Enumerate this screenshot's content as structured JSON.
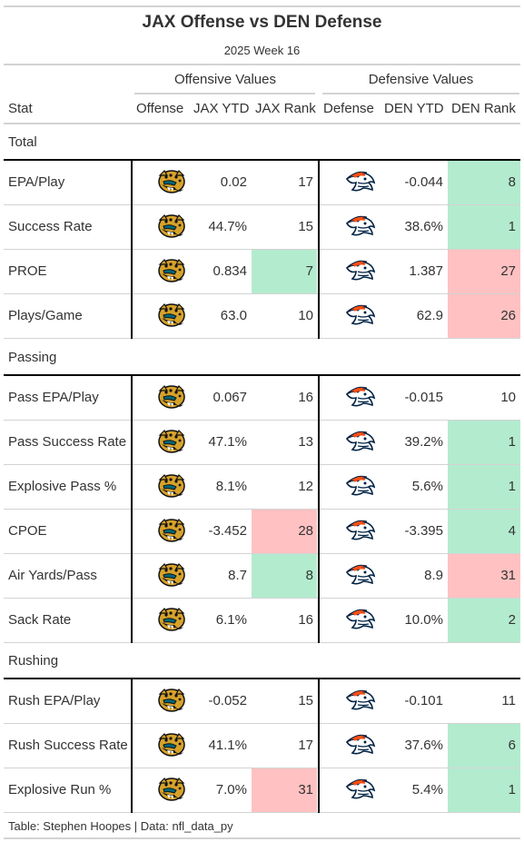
{
  "chart_data": {
    "type": "table",
    "title": "JAX Offense vs DEN Defense",
    "subtitle": "2025 Week 16",
    "spanners": {
      "offense": "Offensive Values",
      "defense": "Defensive Values"
    },
    "columns": [
      "Stat",
      "Offense",
      "JAX YTD",
      "JAX Rank",
      "Defense",
      "DEN YTD",
      "DEN Rank"
    ],
    "groups": [
      {
        "name": "Total",
        "rows": [
          {
            "stat": "EPA/Play",
            "jax_ytd": "0.02",
            "jax_rank": "17",
            "den_ytd": "-0.044",
            "den_rank": "8"
          },
          {
            "stat": "Success Rate",
            "jax_ytd": "44.7%",
            "jax_rank": "15",
            "den_ytd": "38.6%",
            "den_rank": "1"
          },
          {
            "stat": "PROE",
            "jax_ytd": "0.834",
            "jax_rank": "7",
            "den_ytd": "1.387",
            "den_rank": "27"
          },
          {
            "stat": "Plays/Game",
            "jax_ytd": "63.0",
            "jax_rank": "10",
            "den_ytd": "62.9",
            "den_rank": "26"
          }
        ]
      },
      {
        "name": "Passing",
        "rows": [
          {
            "stat": "Pass EPA/Play",
            "jax_ytd": "0.067",
            "jax_rank": "16",
            "den_ytd": "-0.015",
            "den_rank": "10"
          },
          {
            "stat": "Pass Success Rate",
            "jax_ytd": "47.1%",
            "jax_rank": "13",
            "den_ytd": "39.2%",
            "den_rank": "1"
          },
          {
            "stat": "Explosive Pass %",
            "jax_ytd": "8.1%",
            "jax_rank": "12",
            "den_ytd": "5.6%",
            "den_rank": "1"
          },
          {
            "stat": "CPOE",
            "jax_ytd": "-3.452",
            "jax_rank": "28",
            "den_ytd": "-3.395",
            "den_rank": "4"
          },
          {
            "stat": "Air Yards/Pass",
            "jax_ytd": "8.7",
            "jax_rank": "8",
            "den_ytd": "8.9",
            "den_rank": "31"
          },
          {
            "stat": "Sack Rate",
            "jax_ytd": "6.1%",
            "jax_rank": "16",
            "den_ytd": "10.0%",
            "den_rank": "2"
          }
        ]
      },
      {
        "name": "Rushing",
        "rows": [
          {
            "stat": "Rush EPA/Play",
            "jax_ytd": "-0.052",
            "jax_rank": "15",
            "den_ytd": "-0.101",
            "den_rank": "11"
          },
          {
            "stat": "Rush Success Rate",
            "jax_ytd": "41.1%",
            "jax_rank": "17",
            "den_ytd": "37.6%",
            "den_rank": "6"
          },
          {
            "stat": "Explosive Run %",
            "jax_ytd": "7.0%",
            "jax_rank": "31",
            "den_ytd": "5.4%",
            "den_rank": "1"
          }
        ]
      }
    ],
    "highlight_rule": "rank <= 8 green, rank >= 25 red",
    "colors": {
      "good": "#b3ebcf",
      "bad": "#ffc1c1",
      "jaguars_teal": "#006778",
      "jaguars_gold": "#d7a22a",
      "broncos_orange": "#fb4f14",
      "broncos_navy": "#002244"
    },
    "logo_icons": {
      "offense": "jaguars-logo-icon",
      "defense": "broncos-logo-icon"
    }
  },
  "footer": "Table: Stephen Hoopes | Data: nfl_data_py"
}
